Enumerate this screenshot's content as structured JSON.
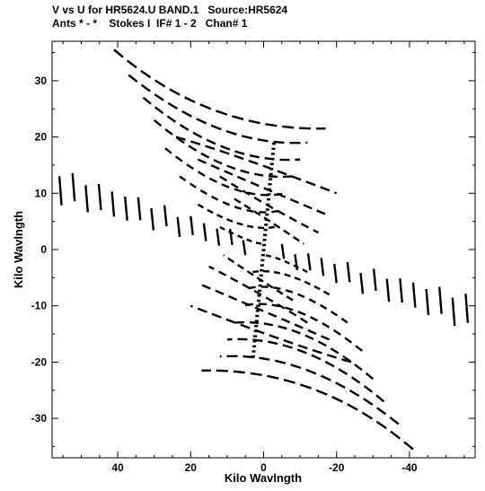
{
  "chart_data": {
    "type": "scatter",
    "title": "V vs U for HR5624.U BAND.1   Source:HR5624",
    "subtitle": "Ants * - *    Stokes I  IF# 1 - 2   Chan# 1",
    "xlabel": "Kilo Wavlngth",
    "ylabel": "Kilo Wavlngth",
    "xlim": [
      58,
      -58
    ],
    "ylim": [
      -37,
      37
    ],
    "x_ticks": [
      40,
      20,
      0,
      -20,
      -40
    ],
    "y_ticks": [
      -30,
      -20,
      -10,
      0,
      10,
      20,
      30
    ],
    "grid": false,
    "legend": "none",
    "marker_color": "#000000",
    "tracks_description": "uv-coverage arcs; each track point-symmetric about origin"
  }
}
